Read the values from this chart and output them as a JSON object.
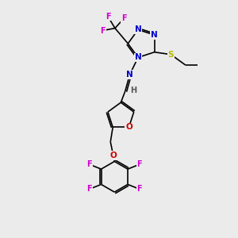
{
  "background_color": "#ebebeb",
  "atom_colors": {
    "C": "#000000",
    "N": "#0000cc",
    "O": "#cc0000",
    "F": "#cc00cc",
    "S": "#b8b800",
    "H": "#555555"
  },
  "figsize": [
    3.0,
    3.0
  ],
  "dpi": 100,
  "lw": 1.2,
  "fs": 7.5
}
